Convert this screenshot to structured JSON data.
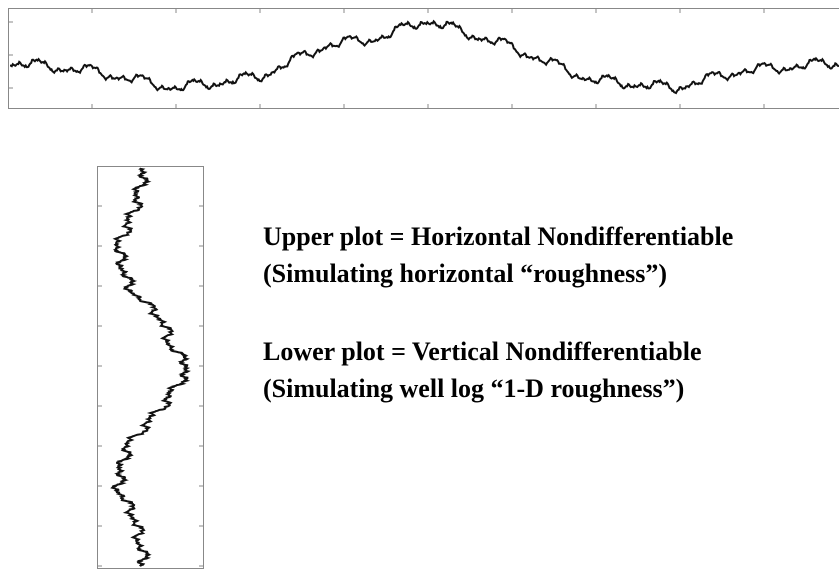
{
  "text": {
    "upper_line1": "Upper plot = Horizontal Nondifferentiable",
    "upper_line2": "(Simulating horizontal “roughness”)",
    "lower_line1": "Lower plot = Vertical  Nondifferentiable",
    "lower_line2": "(Simulating well log “1-D roughness”)"
  }
}
